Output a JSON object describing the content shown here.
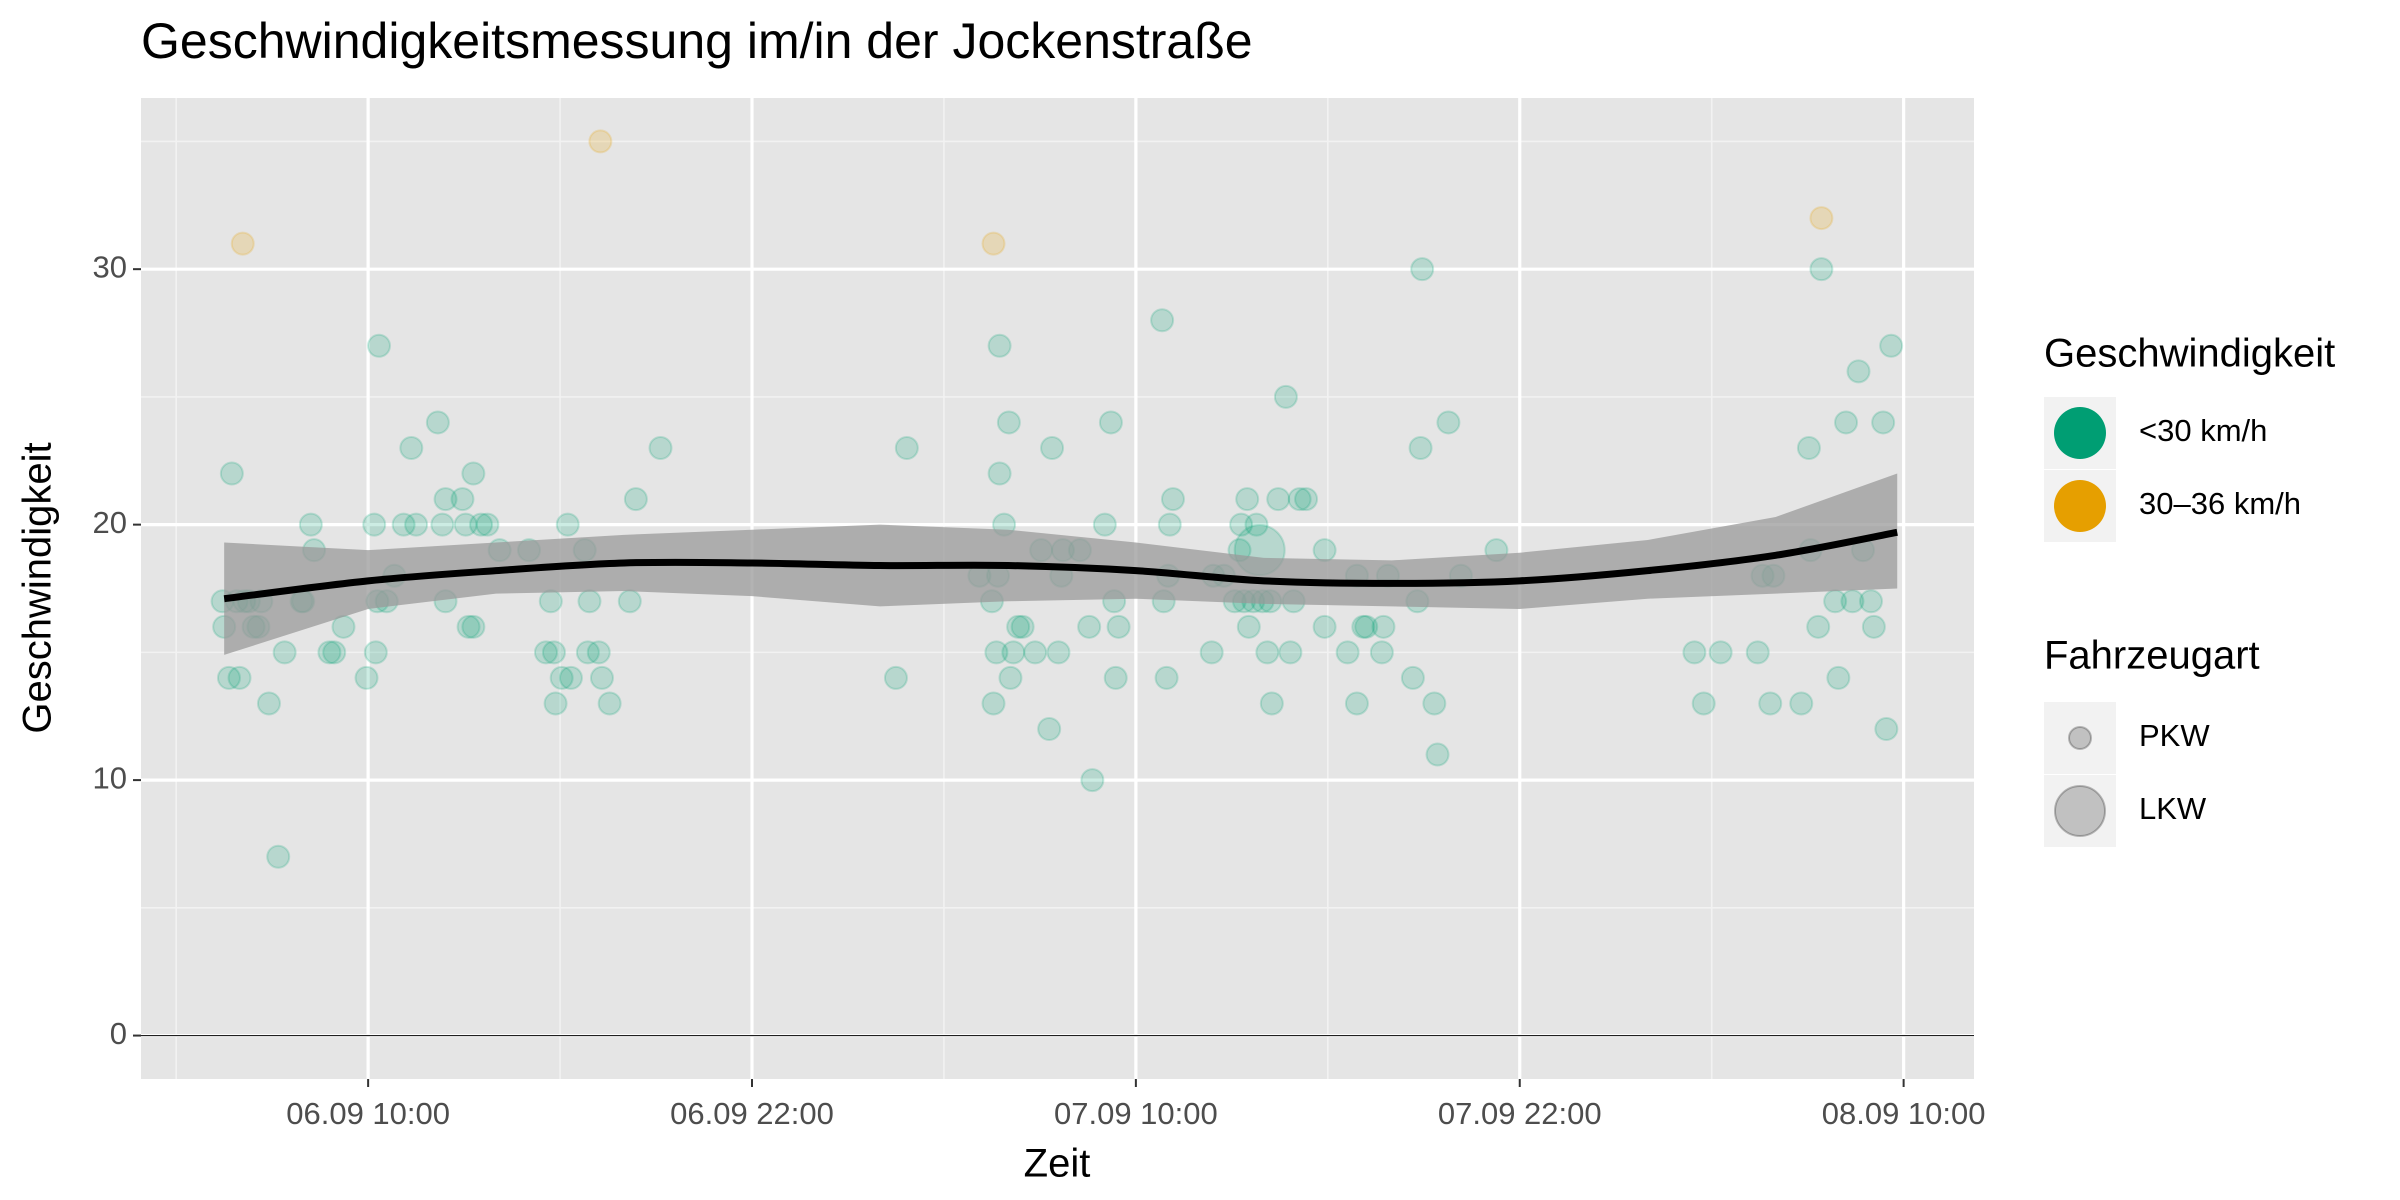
{
  "chart_data": {
    "type": "scatter",
    "title": "Geschwindigkeitsmessung im/in der Jockenstraße",
    "x_label": "Zeit",
    "y_label": "Geschwindigkeit",
    "xlim": [
      2.9,
      60.2
    ],
    "xticks": [
      {
        "value": 10,
        "label": "06.09 10:00"
      },
      {
        "value": 22,
        "label": "06.09 22:00"
      },
      {
        "value": 34,
        "label": "07.09 10:00"
      },
      {
        "value": 46,
        "label": "07.09 22:00"
      },
      {
        "value": 58,
        "label": "08.09 10:00"
      }
    ],
    "ylim": [
      -1.7,
      36.7
    ],
    "yticks": [
      0,
      10,
      20,
      30
    ],
    "grid": true,
    "hline": 0,
    "color_legend_title": "Geschwindigkeit",
    "size_legend_title": "Fahrzeugart",
    "size_legend": [
      "PKW",
      "LKW"
    ],
    "series": [
      {
        "name": "<30 km/h",
        "color": "#009E73",
        "vehicle": "PKW",
        "x": [
          5.45,
          5.5,
          5.65,
          5.74,
          5.89,
          5.98,
          6.13,
          6.27,
          6.42,
          6.57,
          6.66,
          6.9,
          7.19,
          7.39,
          7.92,
          7.97,
          8.21,
          8.31,
          8.79,
          8.94,
          9.23,
          9.95,
          10.19,
          10.24,
          10.34,
          10.29,
          10.58,
          10.82,
          11.11,
          11.35,
          11.5,
          12.18,
          12.32,
          12.42,
          12.42,
          12.95,
          13.05,
          13.14,
          13.29,
          13.29,
          13.53,
          13.73,
          14.11,
          15.03,
          15.56,
          15.71,
          15.81,
          15.86,
          16.05,
          16.24,
          16.34,
          16.77,
          16.87,
          16.92,
          17.21,
          17.31,
          17.55,
          18.18,
          18.37,
          19.14,
          26.5,
          26.84,
          29.11,
          29.5,
          29.55,
          29.64,
          29.69,
          29.74,
          29.74,
          29.88,
          30.03,
          30.08,
          30.17,
          30.32,
          30.46,
          30.85,
          31.04,
          31.29,
          31.38,
          31.58,
          31.67,
          31.72,
          32.25,
          32.54,
          32.64,
          33.03,
          33.22,
          33.32,
          33.37,
          33.46,
          34.82,
          34.87,
          34.96,
          35.01,
          35.06,
          35.16,
          36.37,
          36.42,
          36.75,
          37.09,
          37.24,
          37.29,
          37.38,
          37.48,
          37.53,
          37.67,
          37.77,
          37.96,
          38.11,
          38.2,
          38.25,
          38.45,
          38.69,
          38.83,
          38.93,
          39.12,
          39.32,
          39.9,
          39.9,
          40.62,
          40.91,
          40.91,
          41.11,
          41.2,
          41.69,
          41.74,
          41.88,
          42.66,
          42.8,
          42.9,
          42.95,
          43.33,
          43.43,
          43.77,
          44.16,
          45.27,
          51.46,
          51.75,
          52.28,
          53.44,
          53.59,
          53.83,
          53.93,
          54.8,
          55.04,
          55.09,
          55.33,
          55.43,
          55.86,
          55.96,
          56.2,
          56.4,
          56.59,
          56.73,
          56.98,
          57.07,
          57.36,
          57.46,
          57.61
        ],
        "values": [
          17,
          16,
          14,
          22,
          17,
          14,
          17,
          17,
          16,
          16,
          17,
          13,
          7,
          15,
          17,
          17,
          20,
          19,
          15,
          15,
          16,
          14,
          20,
          15,
          27,
          17,
          17,
          18,
          20,
          23,
          20,
          24,
          20,
          21,
          17,
          21,
          20,
          16,
          16,
          22,
          20,
          20,
          19,
          19,
          15,
          17,
          15,
          13,
          14,
          20,
          14,
          19,
          15,
          17,
          15,
          14,
          13,
          17,
          21,
          23,
          14,
          23,
          18,
          17,
          13,
          15,
          18,
          22,
          27,
          20,
          24,
          14,
          15,
          16,
          16,
          15,
          19,
          12,
          23,
          15,
          18,
          19,
          19,
          16,
          10,
          20,
          24,
          17,
          14,
          16,
          28,
          17,
          14,
          18,
          20,
          21,
          15,
          18,
          18,
          17,
          19,
          20,
          17,
          21,
          16,
          17,
          20,
          17,
          15,
          17,
          13,
          21,
          25,
          15,
          17,
          21,
          21,
          19,
          16,
          15,
          18,
          13,
          16,
          16,
          15,
          16,
          18,
          14,
          17,
          23,
          30,
          13,
          11,
          24,
          18,
          19,
          15,
          13,
          15,
          15,
          18,
          13,
          18,
          13,
          23,
          19,
          16,
          30,
          17,
          14,
          24,
          17,
          26,
          19,
          17,
          16,
          24,
          12,
          27
        ]
      },
      {
        "name": "30–36 km/h",
        "color": "#E69F00",
        "vehicle": "PKW",
        "x": [
          6.08,
          17.26,
          29.55,
          55.43
        ],
        "values": [
          31,
          35,
          31,
          32
        ]
      },
      {
        "name": "<30 km/h",
        "color": "#009E73",
        "vehicle": "LKW",
        "x": [
          37.87
        ],
        "values": [
          19
        ]
      }
    ],
    "smooth": {
      "color": "#000000",
      "x": [
        5.5,
        10,
        14,
        18,
        22,
        26,
        30,
        34,
        38,
        42,
        46,
        50,
        54,
        57.8
      ],
      "values": [
        17.1,
        17.8,
        18.2,
        18.5,
        18.5,
        18.4,
        18.4,
        18.2,
        17.8,
        17.7,
        17.8,
        18.2,
        18.8,
        19.7
      ],
      "lower": [
        14.9,
        16.7,
        17.3,
        17.4,
        17.2,
        16.8,
        17.0,
        17.1,
        16.9,
        16.8,
        16.7,
        17.1,
        17.3,
        17.5
      ],
      "upper": [
        19.3,
        19.0,
        19.3,
        19.6,
        19.8,
        20.0,
        19.8,
        19.3,
        18.7,
        18.6,
        18.9,
        19.4,
        20.3,
        22.0
      ]
    }
  }
}
